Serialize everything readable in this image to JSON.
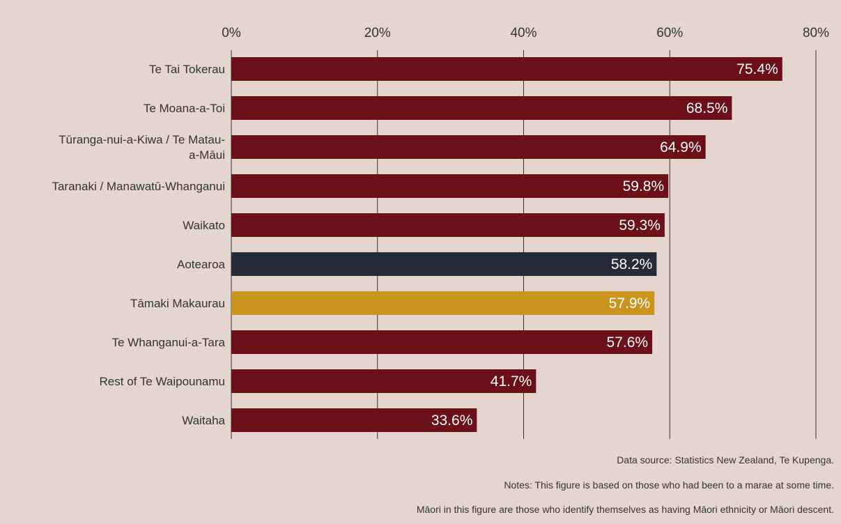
{
  "chart_data": {
    "type": "bar",
    "orientation": "horizontal",
    "categories": [
      [
        "Te Tai Tokerau"
      ],
      [
        "Te Moana-a-Toi"
      ],
      [
        "Tūranga-nui-a-Kiwa / Te Matau-",
        "a-Māui"
      ],
      [
        "Taranaki / Manawatū-Whanganui"
      ],
      [
        "Waikato"
      ],
      [
        "Aotearoa"
      ],
      [
        "Tāmaki Makaurau"
      ],
      [
        "Te Whanganui-a-Tara"
      ],
      [
        "Rest of Te Waipounamu"
      ],
      [
        "Waitaha"
      ]
    ],
    "values": [
      75.4,
      68.5,
      64.9,
      59.8,
      59.3,
      58.2,
      57.9,
      57.6,
      41.7,
      33.6
    ],
    "value_labels": [
      "75.4%",
      "68.5%",
      "64.9%",
      "59.8%",
      "59.3%",
      "58.2%",
      "57.9%",
      "57.6%",
      "41.7%",
      "33.6%"
    ],
    "colors": [
      "#6b1018",
      "#6b1018",
      "#6b1018",
      "#6b1018",
      "#6b1018",
      "#262c37",
      "#c9951f",
      "#6b1018",
      "#6b1018",
      "#6b1018"
    ],
    "xlim": [
      0,
      80
    ],
    "xticks": [
      0,
      20,
      40,
      60,
      80
    ],
    "xtick_labels": [
      "0%",
      "20%",
      "40%",
      "60%",
      "80%"
    ],
    "grid": "vertical",
    "legend": "none"
  },
  "notes": {
    "source": "Data source: Statistics New Zealand, Te Kupenga.",
    "note1": "Notes: This figure is based on those who had been to a marae at some time.",
    "note2": "Māori in this figure are those who identify themselves as having Māori ethnicity or Māori descent."
  }
}
